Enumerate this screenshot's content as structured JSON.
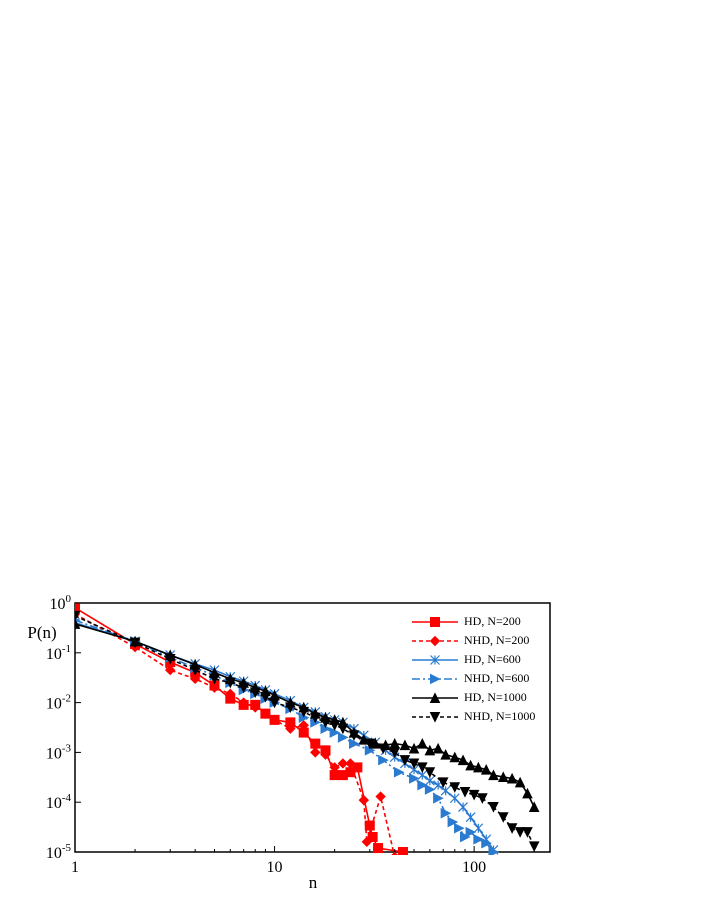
{
  "chart_data": {
    "type": "line",
    "x_label": "n",
    "y_label": "P(n)",
    "xscale": "log",
    "yscale": "log",
    "xlim": [
      1,
      240
    ],
    "ylim": [
      1e-05,
      1
    ],
    "xticks": [
      1,
      10,
      100
    ],
    "yticks": [
      {
        "value": 1,
        "label": "10^0"
      },
      {
        "value": 0.1,
        "label": "10^-1"
      },
      {
        "value": 0.01,
        "label": "10^-2"
      },
      {
        "value": 0.001,
        "label": "10^-3"
      },
      {
        "value": 0.0001,
        "label": "10^-4"
      },
      {
        "value": 1e-05,
        "label": "10^-5"
      }
    ],
    "legend": "upper right",
    "series": [
      {
        "name": "HD, N=200",
        "color": "#ff0000",
        "marker": "square",
        "dash": "solid",
        "x": [
          1,
          2,
          3,
          4,
          5,
          6,
          7,
          8,
          9,
          10,
          12,
          14,
          16,
          18,
          20,
          22,
          24,
          26,
          30,
          31,
          33,
          44
        ],
        "values": [
          0.8,
          0.15,
          0.065,
          0.04,
          0.022,
          0.012,
          0.009,
          0.009,
          0.006,
          0.0045,
          0.004,
          0.0025,
          0.0015,
          0.0011,
          0.00035,
          0.00035,
          0.0004,
          0.0005,
          3.4e-05,
          2e-05,
          1.2e-05,
          1e-05
        ]
      },
      {
        "name": "NHD, N=200",
        "color": "#ff0000",
        "marker": "diamond",
        "dash": "dashed",
        "x": [
          1,
          2,
          3,
          4,
          5,
          6,
          7,
          8,
          9,
          10,
          12,
          14,
          16,
          18,
          20,
          22,
          24,
          28,
          29,
          34,
          40
        ],
        "values": [
          0.6,
          0.13,
          0.045,
          0.03,
          0.02,
          0.015,
          0.01,
          0.008,
          0.006,
          0.0045,
          0.003,
          0.0035,
          0.001,
          0.0009,
          0.0005,
          0.0006,
          0.0006,
          0.00011,
          1.6e-05,
          0.00013,
          8e-06
        ]
      },
      {
        "name": "HD, N=600",
        "color": "#2a7bd0",
        "marker": "x",
        "dash": "solid",
        "x": [
          1,
          2,
          3,
          4,
          5,
          6,
          7,
          8,
          9,
          10,
          12,
          14,
          16,
          18,
          20,
          22,
          25,
          28,
          32,
          36,
          40,
          45,
          50,
          55,
          60,
          66,
          72,
          80,
          88,
          96,
          105,
          115,
          125
        ],
        "values": [
          0.4,
          0.17,
          0.09,
          0.06,
          0.045,
          0.033,
          0.027,
          0.022,
          0.018,
          0.015,
          0.011,
          0.008,
          0.0065,
          0.0052,
          0.0045,
          0.004,
          0.003,
          0.0022,
          0.0016,
          0.0011,
          0.0008,
          0.0006,
          0.00045,
          0.00035,
          0.00027,
          0.00022,
          0.00017,
          0.00012,
          8e-05,
          5e-05,
          3e-05,
          1.8e-05,
          1.1e-05
        ]
      },
      {
        "name": "NHD, N=600",
        "color": "#2a7bd0",
        "marker": "tri-right",
        "dash": "dashdot",
        "x": [
          1,
          2,
          3,
          4,
          5,
          6,
          7,
          8,
          9,
          10,
          12,
          14,
          16,
          18,
          20,
          22,
          25,
          30,
          35,
          42,
          50,
          55,
          60,
          66,
          72,
          78,
          84,
          90,
          96,
          105,
          115,
          125
        ],
        "values": [
          0.45,
          0.17,
          0.08,
          0.05,
          0.035,
          0.025,
          0.018,
          0.015,
          0.012,
          0.01,
          0.0075,
          0.005,
          0.004,
          0.003,
          0.0025,
          0.002,
          0.0015,
          0.0011,
          0.0007,
          0.0004,
          0.0003,
          0.00022,
          0.00018,
          0.00012,
          6e-05,
          4e-05,
          3e-05,
          2e-05,
          2.5e-05,
          1.8e-05,
          1.5e-05,
          1e-05
        ]
      },
      {
        "name": "HD, N=1000",
        "color": "#000000",
        "marker": "tri-up",
        "dash": "solid",
        "x": [
          1,
          2,
          3,
          4,
          5,
          6,
          7,
          8,
          9,
          10,
          12,
          14,
          16,
          18,
          20,
          22,
          25,
          28,
          32,
          36,
          40,
          45,
          50,
          55,
          60,
          66,
          72,
          80,
          88,
          96,
          105,
          115,
          125,
          140,
          155,
          170,
          185,
          200
        ],
        "values": [
          0.38,
          0.17,
          0.09,
          0.058,
          0.04,
          0.03,
          0.025,
          0.02,
          0.017,
          0.014,
          0.01,
          0.008,
          0.006,
          0.005,
          0.0045,
          0.004,
          0.0025,
          0.0018,
          0.0015,
          0.0014,
          0.0015,
          0.0014,
          0.0012,
          0.0015,
          0.0011,
          0.0012,
          0.0009,
          0.0008,
          0.0007,
          0.00055,
          0.0005,
          0.00045,
          0.00035,
          0.00032,
          0.0003,
          0.00025,
          0.00015,
          8e-05
        ]
      },
      {
        "name": "NHD, N=1000",
        "color": "#000000",
        "marker": "tri-down",
        "dash": "dashed",
        "x": [
          1,
          2,
          3,
          4,
          5,
          6,
          7,
          8,
          9,
          10,
          12,
          14,
          16,
          18,
          20,
          22,
          25,
          30,
          35,
          40,
          45,
          50,
          55,
          60,
          70,
          80,
          90,
          100,
          110,
          125,
          140,
          155,
          170,
          185,
          200
        ],
        "values": [
          0.55,
          0.16,
          0.075,
          0.045,
          0.03,
          0.025,
          0.02,
          0.016,
          0.013,
          0.01,
          0.008,
          0.0065,
          0.005,
          0.004,
          0.0035,
          0.003,
          0.0022,
          0.0015,
          0.0012,
          0.001,
          0.0007,
          0.0006,
          0.0005,
          0.0004,
          0.00025,
          0.0002,
          0.00016,
          0.00014,
          0.00012,
          8e-05,
          5e-05,
          3e-05,
          2.5e-05,
          2.5e-05,
          1.3e-05
        ]
      }
    ]
  }
}
